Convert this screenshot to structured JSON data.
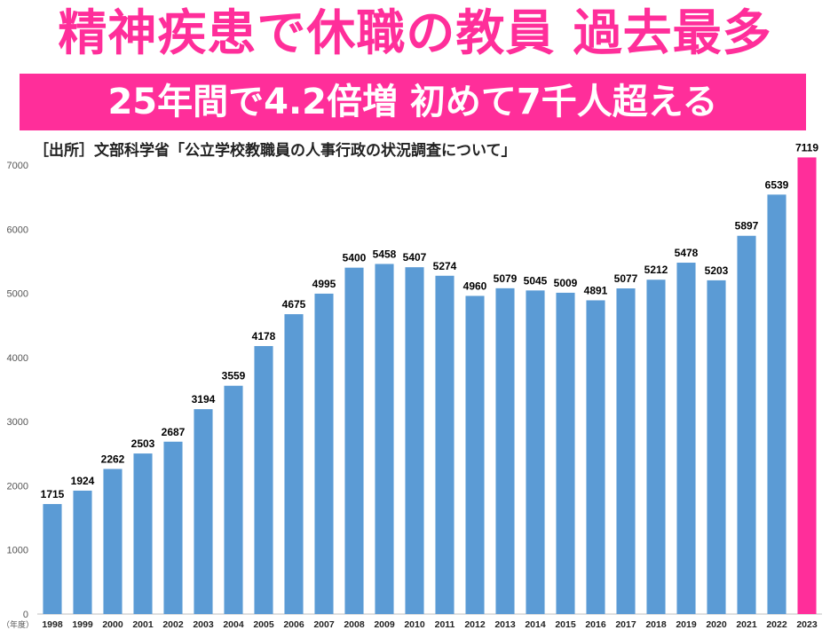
{
  "header": {
    "title": "精神疾患で休職の教員 過去最多",
    "subtitle": "25年間で4.2倍増 初めて7千人超える",
    "source": "［出所］文部科学省「公立学校教職員の人事行政の状況調査について」"
  },
  "colors": {
    "accent": "#ff2e9a",
    "bar": "#5b9bd5",
    "highlight_bar": "#ff2e9a"
  },
  "chart_data": {
    "type": "bar",
    "categories": [
      "1998",
      "1999",
      "2000",
      "2001",
      "2002",
      "2003",
      "2004",
      "2005",
      "2006",
      "2007",
      "2008",
      "2009",
      "2010",
      "2011",
      "2012",
      "2013",
      "2014",
      "2015",
      "2016",
      "2017",
      "2018",
      "2019",
      "2020",
      "2021",
      "2022",
      "2023"
    ],
    "values": [
      1715,
      1924,
      2262,
      2503,
      2687,
      3194,
      3559,
      4178,
      4675,
      4995,
      5400,
      5458,
      5407,
      5274,
      4960,
      5079,
      5045,
      5009,
      4891,
      5077,
      5212,
      5478,
      5203,
      5897,
      6539,
      7119
    ],
    "highlight_category": "2023",
    "x_unit_label": "（年度）",
    "ylim": [
      0,
      7000
    ],
    "yticks": [
      0,
      1000,
      2000,
      3000,
      4000,
      5000,
      6000,
      7000
    ],
    "grid": false,
    "legend": "none"
  }
}
